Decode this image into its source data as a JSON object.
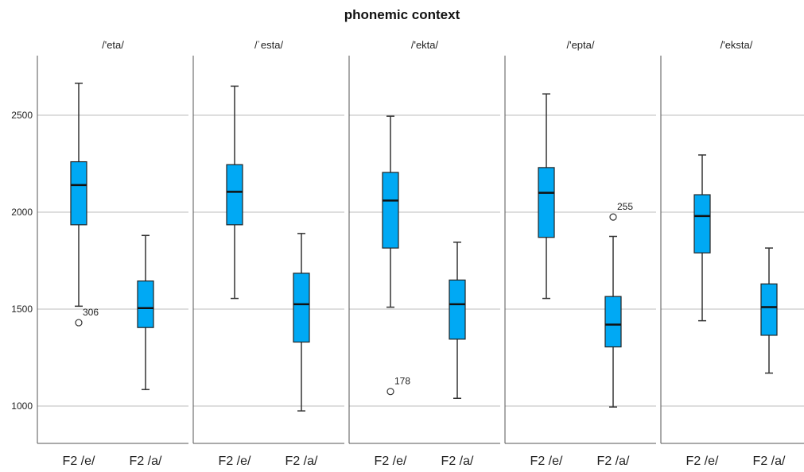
{
  "chart_data": {
    "type": "boxplot",
    "title": "phonemic context",
    "ylim": [
      800,
      2800
    ],
    "yticks": [
      1000,
      1500,
      2000,
      2500
    ],
    "grid": true,
    "box_color": "#00a9f4",
    "categories": [
      "F2 /e/",
      "F2 /a/"
    ],
    "panels": [
      {
        "name": "/'eta/",
        "boxes": [
          {
            "category": "F2 /e/",
            "min": 1515,
            "q1": 1935,
            "median": 2140,
            "q3": 2260,
            "max": 2665,
            "outliers": [
              {
                "value": 1430,
                "label": "306"
              }
            ]
          },
          {
            "category": "F2 /a/",
            "min": 1085,
            "q1": 1405,
            "median": 1505,
            "q3": 1645,
            "max": 1880,
            "outliers": []
          }
        ]
      },
      {
        "name": "/ˈesta/",
        "boxes": [
          {
            "category": "F2 /e/",
            "min": 1555,
            "q1": 1935,
            "median": 2105,
            "q3": 2245,
            "max": 2650,
            "outliers": []
          },
          {
            "category": "F2 /a/",
            "min": 975,
            "q1": 1330,
            "median": 1525,
            "q3": 1685,
            "max": 1890,
            "outliers": []
          }
        ]
      },
      {
        "name": "/'ekta/",
        "boxes": [
          {
            "category": "F2 /e/",
            "min": 1510,
            "q1": 1815,
            "median": 2060,
            "q3": 2205,
            "max": 2495,
            "outliers": [
              {
                "value": 1075,
                "label": "178"
              }
            ]
          },
          {
            "category": "F2 /a/",
            "min": 1040,
            "q1": 1345,
            "median": 1525,
            "q3": 1650,
            "max": 1845,
            "outliers": []
          }
        ]
      },
      {
        "name": "/'epta/",
        "boxes": [
          {
            "category": "F2 /e/",
            "min": 1555,
            "q1": 1870,
            "median": 2100,
            "q3": 2230,
            "max": 2610,
            "outliers": []
          },
          {
            "category": "F2 /a/",
            "min": 995,
            "q1": 1305,
            "median": 1420,
            "q3": 1565,
            "max": 1875,
            "outliers": [
              {
                "value": 1975,
                "label": "255"
              }
            ]
          }
        ]
      },
      {
        "name": "/'eksta/",
        "boxes": [
          {
            "category": "F2 /e/",
            "min": 1440,
            "q1": 1790,
            "median": 1980,
            "q3": 2090,
            "max": 2295,
            "outliers": []
          },
          {
            "category": "F2 /a/",
            "min": 1170,
            "q1": 1365,
            "median": 1510,
            "q3": 1630,
            "max": 1815,
            "outliers": []
          }
        ]
      }
    ]
  }
}
